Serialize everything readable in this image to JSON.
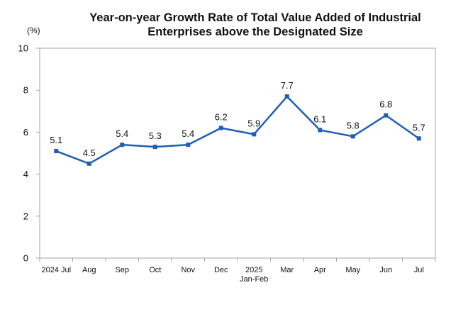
{
  "chart_data": {
    "type": "line",
    "title_lines": [
      "Year-on-year Growth Rate of Total Value Added of Industrial",
      "Enterprises above the Designated Size"
    ],
    "unit_label": "(%)",
    "categories": [
      [
        "2024 Jul"
      ],
      [
        "Aug"
      ],
      [
        "Sep"
      ],
      [
        "Oct"
      ],
      [
        "Nov"
      ],
      [
        "Dec"
      ],
      [
        "2025",
        "Jan-Feb"
      ],
      [
        "Mar"
      ],
      [
        "Apr"
      ],
      [
        "May"
      ],
      [
        "Jun"
      ],
      [
        "Jul"
      ]
    ],
    "values": [
      5.1,
      4.5,
      5.4,
      5.3,
      5.4,
      6.2,
      5.9,
      7.7,
      6.1,
      5.8,
      6.8,
      5.7
    ],
    "data_labels": [
      "5.1",
      "4.5",
      "5.4",
      "5.3",
      "5.4",
      "6.2",
      "5.9",
      "7.7",
      "6.1",
      "5.8",
      "6.8",
      "5.7"
    ],
    "ylim": [
      0,
      10
    ],
    "yticks": [
      0,
      2,
      4,
      6,
      8,
      10
    ],
    "series_color": "#1f5fb4",
    "frame_color": "#a6a6a6",
    "grid": false
  }
}
